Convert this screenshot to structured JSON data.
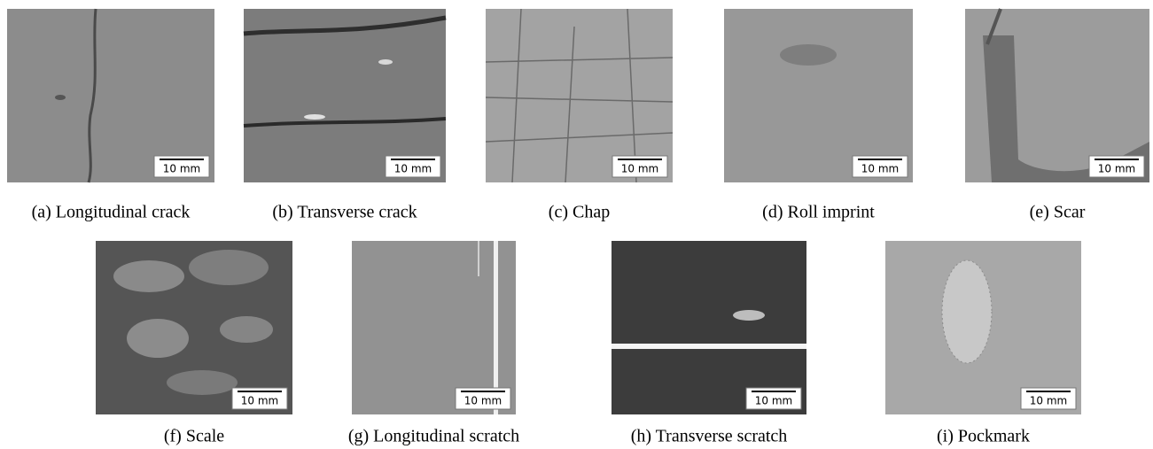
{
  "panels": [
    {
      "caption": "(a) Longitudinal crack",
      "scale_label": "10 mm"
    },
    {
      "caption": "(b) Transverse crack",
      "scale_label": "10 mm"
    },
    {
      "caption": "(c) Chap",
      "scale_label": "10 mm"
    },
    {
      "caption": "(d) Roll imprint",
      "scale_label": "10 mm"
    },
    {
      "caption": "(e) Scar",
      "scale_label": "10 mm"
    },
    {
      "caption": "(f) Scale",
      "scale_label": "10 mm"
    },
    {
      "caption": "(g) Longitudinal scratch",
      "scale_label": "10 mm"
    },
    {
      "caption": "(h) Transverse scratch",
      "scale_label": "10 mm"
    },
    {
      "caption": "(i) Pockmark",
      "scale_label": "10 mm"
    }
  ]
}
